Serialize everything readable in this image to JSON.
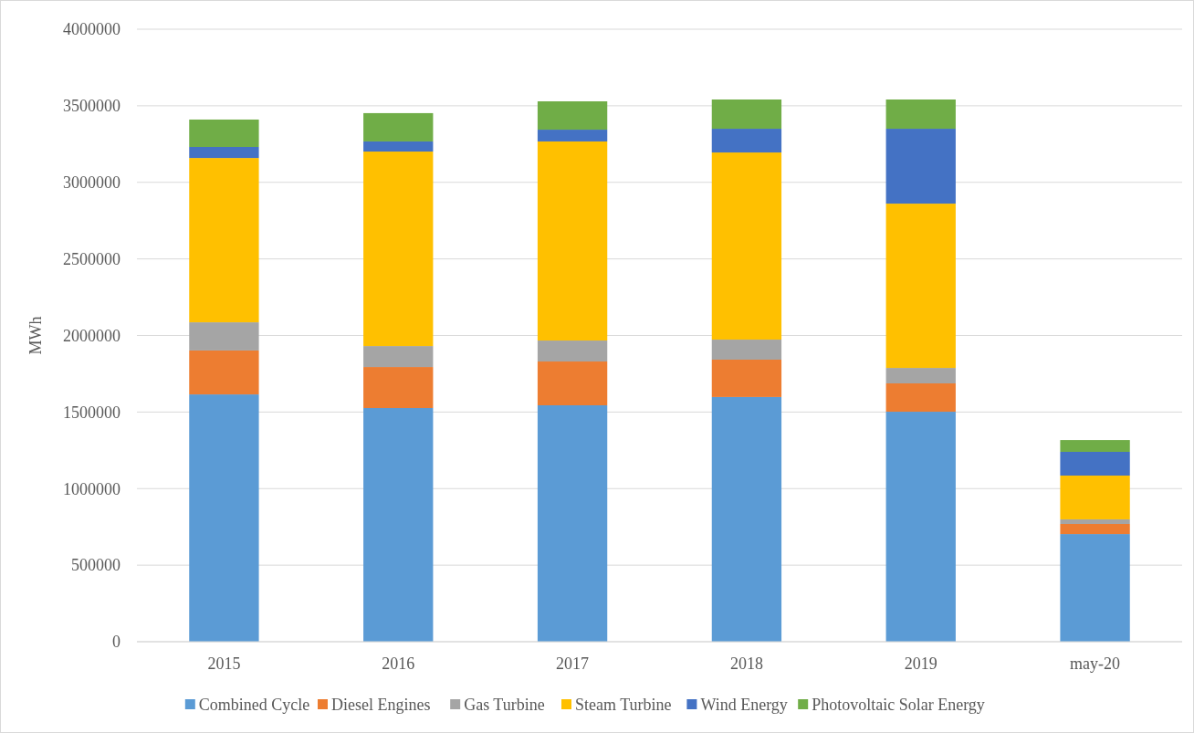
{
  "chart_data": {
    "type": "bar",
    "stacked": true,
    "ylabel": "MWh",
    "categories": [
      "2015",
      "2016",
      "2017",
      "2018",
      "2019",
      "may-20"
    ],
    "ylim": [
      0,
      4000000
    ],
    "yticks": [
      0,
      500000,
      1000000,
      1500000,
      2000000,
      2500000,
      3000000,
      3500000,
      4000000
    ],
    "grid": "y",
    "legend": "bottom",
    "series": [
      {
        "name": "Combined Cycle",
        "color": "#5b9bd5",
        "values": [
          1615000,
          1526000,
          1544000,
          1598000,
          1502000,
          703000
        ]
      },
      {
        "name": "Diesel Engines",
        "color": "#ed7d31",
        "values": [
          287000,
          268000,
          286000,
          244000,
          185000,
          66000
        ]
      },
      {
        "name": "Gas Turbine",
        "color": "#a5a5a5",
        "values": [
          184000,
          137000,
          137000,
          131000,
          101000,
          30000
        ]
      },
      {
        "name": "Steam Turbine",
        "color": "#ffc000",
        "values": [
          1073000,
          1270000,
          1300000,
          1222000,
          1073000,
          286000
        ]
      },
      {
        "name": "Wind Energy",
        "color": "#4472c4",
        "values": [
          72000,
          66000,
          77000,
          155000,
          489000,
          155000
        ]
      },
      {
        "name": "Photovoltaic Solar Energy",
        "color": "#70ad47",
        "values": [
          179000,
          185000,
          185000,
          191000,
          191000,
          77000
        ]
      }
    ]
  }
}
